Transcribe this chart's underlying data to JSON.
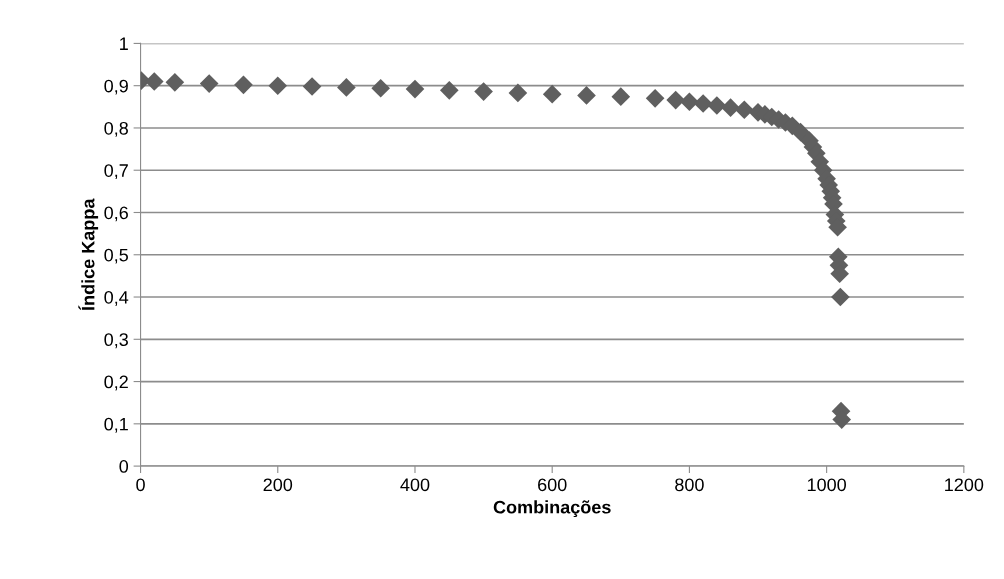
{
  "chart_data": {
    "type": "scatter",
    "xlabel": "Combinações",
    "ylabel": "Índice Kappa",
    "marker": "diamond",
    "grid": "y",
    "series": [
      {
        "color": "#5f5f5f",
        "x": [
          1,
          20,
          50,
          100,
          150,
          200,
          250,
          300,
          350,
          400,
          450,
          500,
          550,
          600,
          650,
          700,
          750,
          780,
          800,
          820,
          840,
          860,
          880,
          900,
          910,
          920,
          930,
          940,
          950,
          962,
          975,
          980,
          985,
          990,
          995,
          1000,
          1003,
          1006,
          1008,
          1010,
          1012,
          1014,
          1016,
          1017,
          1018,
          1019,
          1020,
          1021,
          1022
        ],
        "values": [
          0.912,
          0.91,
          0.908,
          0.905,
          0.902,
          0.9,
          0.898,
          0.896,
          0.894,
          0.892,
          0.889,
          0.886,
          0.883,
          0.88,
          0.877,
          0.874,
          0.87,
          0.866,
          0.862,
          0.858,
          0.853,
          0.848,
          0.843,
          0.837,
          0.832,
          0.826,
          0.82,
          0.813,
          0.805,
          0.79,
          0.77,
          0.755,
          0.74,
          0.72,
          0.7,
          0.68,
          0.665,
          0.65,
          0.635,
          0.62,
          0.595,
          0.58,
          0.565,
          0.495,
          0.475,
          0.455,
          0.4,
          0.13,
          0.11
        ]
      }
    ],
    "xlim": [
      0,
      1200
    ],
    "xticks": [
      0,
      200,
      400,
      600,
      800,
      1000,
      1200
    ],
    "ylim": [
      0,
      1
    ],
    "yticks": [
      0,
      {
        "value": 0.1,
        "label": "0,1"
      },
      {
        "value": 0.2,
        "label": "0,2"
      },
      {
        "value": 0.3,
        "label": "0,3"
      },
      {
        "value": 0.4,
        "label": "0,4"
      },
      {
        "value": 0.5,
        "label": "0,5"
      },
      {
        "value": 0.6,
        "label": "0,6"
      },
      {
        "value": 0.7,
        "label": "0,7"
      },
      {
        "value": 0.8,
        "label": "0,8"
      },
      {
        "value": 0.9,
        "label": "0,9"
      },
      1
    ]
  }
}
